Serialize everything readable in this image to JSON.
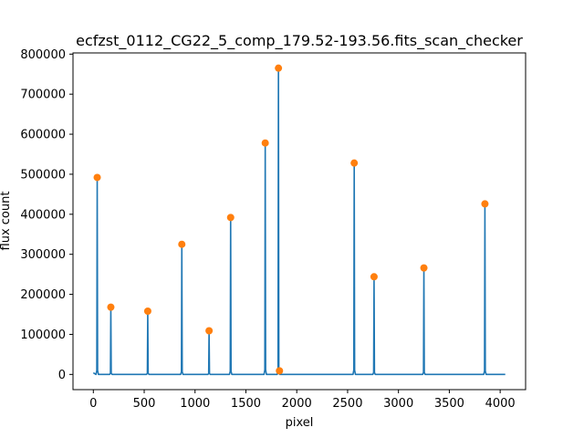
{
  "chart_data": {
    "type": "line",
    "title": "ecfzst_0112_CG22_5_comp_179.52-193.56.fits_scan_checker",
    "xlabel": "pixel",
    "ylabel": "flux count",
    "xlim": [
      -200,
      4250
    ],
    "ylim": [
      -38000,
      803000
    ],
    "xticks": [
      0,
      500,
      1000,
      1500,
      2000,
      2500,
      3000,
      3500,
      4000
    ],
    "yticks": [
      0,
      100000,
      200000,
      300000,
      400000,
      500000,
      600000,
      700000,
      800000
    ],
    "grid": false,
    "colors": {
      "line": "#1f77b4",
      "peaks": "#ff7f0e"
    },
    "series": [
      {
        "values_x": [
          0,
          4050
        ],
        "baseline": 0,
        "peaks": [
          {
            "x": 38,
            "y": 492000
          },
          {
            "x": 172,
            "y": 168000
          },
          {
            "x": 535,
            "y": 158000
          },
          {
            "x": 870,
            "y": 325000
          },
          {
            "x": 1138,
            "y": 109000
          },
          {
            "x": 1350,
            "y": 392000
          },
          {
            "x": 1690,
            "y": 578000
          },
          {
            "x": 1820,
            "y": 765000
          },
          {
            "x": 2565,
            "y": 528000
          },
          {
            "x": 2760,
            "y": 244000
          },
          {
            "x": 3250,
            "y": 266000
          },
          {
            "x": 3850,
            "y": 426000
          }
        ]
      }
    ],
    "markers": [
      {
        "x": 38,
        "y": 492000
      },
      {
        "x": 172,
        "y": 168000
      },
      {
        "x": 535,
        "y": 158000
      },
      {
        "x": 870,
        "y": 325000
      },
      {
        "x": 1138,
        "y": 109000
      },
      {
        "x": 1350,
        "y": 392000
      },
      {
        "x": 1690,
        "y": 578000
      },
      {
        "x": 1820,
        "y": 765000
      },
      {
        "x": 1830,
        "y": 9000
      },
      {
        "x": 2565,
        "y": 528000
      },
      {
        "x": 2760,
        "y": 244000
      },
      {
        "x": 3250,
        "y": 266000
      },
      {
        "x": 3850,
        "y": 426000
      }
    ]
  }
}
